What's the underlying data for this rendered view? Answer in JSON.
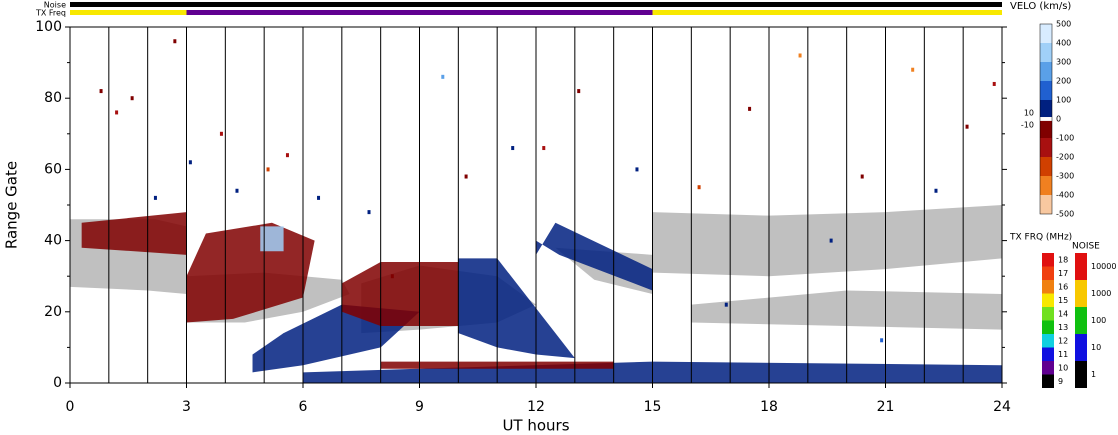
{
  "chart_data": {
    "type": "range-time",
    "xlabel": "UT hours",
    "ylabel": "Range Gate",
    "xlim": [
      0,
      24
    ],
    "xticks": [
      0,
      3,
      6,
      9,
      12,
      15,
      18,
      21,
      24
    ],
    "xgrid": [
      1,
      2,
      3,
      4,
      5,
      6,
      7,
      8,
      9,
      10,
      11,
      12,
      13,
      14,
      15,
      16,
      17,
      18,
      19,
      20,
      21,
      22,
      23
    ],
    "ylim": [
      0,
      100
    ],
    "yticks": [
      0,
      20,
      40,
      60,
      80,
      100
    ],
    "yminor": [
      10,
      30,
      50,
      70,
      90
    ],
    "ground_scatter_color": "#c0c0c0",
    "ground_scatter": [
      {
        "x": [
          0,
          2,
          3,
          3,
          2.2,
          0
        ],
        "y": [
          27,
          26,
          25,
          44,
          46,
          46
        ]
      },
      {
        "x": [
          3,
          4.5,
          6,
          7.2,
          7,
          5,
          3
        ],
        "y": [
          17,
          17,
          20,
          25,
          29,
          31,
          30
        ]
      },
      {
        "x": [
          7.5,
          9,
          11,
          12,
          11,
          9,
          7.5
        ],
        "y": [
          14,
          15,
          17,
          22,
          30,
          33,
          28
        ]
      },
      {
        "x": [
          12.5,
          15,
          15,
          13.5
        ],
        "y": [
          38,
          36,
          25,
          29
        ]
      },
      {
        "x": [
          15,
          18,
          21,
          24,
          24,
          21,
          18,
          15
        ],
        "y": [
          31,
          30,
          32,
          35,
          50,
          48,
          47,
          48
        ]
      },
      {
        "x": [
          16,
          20,
          24,
          24,
          20,
          16
        ],
        "y": [
          17,
          16,
          15,
          25,
          26,
          22
        ]
      }
    ],
    "regions": [
      {
        "velocity": -80,
        "x": [
          0.3,
          3,
          3,
          0.3
        ],
        "y": [
          38,
          36,
          48,
          45
        ]
      },
      {
        "velocity": -80,
        "x": [
          3,
          4.2,
          6,
          6.3,
          5.2,
          3.5,
          3
        ],
        "y": [
          17,
          18,
          24,
          40,
          45,
          42,
          30
        ]
      },
      {
        "velocity": 90,
        "x": [
          4.7,
          6,
          8,
          9,
          7,
          5.5,
          4.7
        ],
        "y": [
          3,
          5,
          10,
          20,
          22,
          14,
          8
        ]
      },
      {
        "velocity": -60,
        "x": [
          7,
          8,
          10,
          10,
          8,
          7
        ],
        "y": [
          20,
          16,
          16,
          34,
          34,
          28
        ]
      },
      {
        "velocity": 90,
        "x": [
          10,
          11,
          12,
          13,
          12.5,
          11,
          10
        ],
        "y": [
          14,
          10,
          8,
          7,
          14,
          35,
          35
        ]
      },
      {
        "velocity": 70,
        "x": [
          12,
          12.5,
          15,
          15,
          12.6,
          12
        ],
        "y": [
          36,
          45,
          32,
          26,
          36,
          40
        ]
      },
      {
        "velocity": 60,
        "x": [
          6,
          15,
          24,
          24,
          15,
          6
        ],
        "y": [
          0,
          0,
          0,
          5,
          6,
          3
        ]
      },
      {
        "velocity": -60,
        "x": [
          8,
          14,
          14,
          8
        ],
        "y": [
          4,
          4,
          6,
          6
        ]
      },
      {
        "velocity": 300,
        "x": [
          4.9,
          5.5,
          5.5,
          4.9
        ],
        "y": [
          37,
          37,
          44,
          44
        ]
      }
    ],
    "points": {
      "x": [
        0.8,
        1.2,
        1.6,
        2.7,
        3.1,
        3.9,
        4.3,
        5.1,
        5.6,
        6.4,
        7.7,
        8.3,
        9.6,
        10.2,
        11.4,
        13.1,
        14.6,
        16.2,
        17.5,
        18.8,
        19.6,
        20.4,
        21.7,
        22.3,
        23.1,
        23.8,
        2.2,
        20.9,
        16.9,
        12.2
      ],
      "y": [
        82,
        76,
        80,
        96,
        62,
        70,
        54,
        60,
        64,
        52,
        48,
        30,
        86,
        58,
        66,
        82,
        60,
        55,
        77,
        92,
        40,
        58,
        88,
        54,
        72,
        84,
        52,
        12,
        22,
        66
      ],
      "velocity": [
        -80,
        -150,
        -80,
        -50,
        80,
        -200,
        60,
        -300,
        -150,
        80,
        60,
        -100,
        200,
        -80,
        70,
        -100,
        60,
        -250,
        -80,
        -350,
        80,
        -100,
        -400,
        60,
        -80,
        -150,
        60,
        150,
        80,
        -200
      ]
    },
    "colorbars": {
      "velocity": {
        "title": "VELO (km/s)",
        "ticks": [
          500,
          400,
          300,
          200,
          100,
          0,
          -100,
          -200,
          -300,
          -400,
          -500
        ],
        "inner_ticks": [
          10,
          -10
        ],
        "colors": [
          "#d8ecff",
          "#a0d0f8",
          "#5aa0e8",
          "#2060d0",
          "#002080",
          "#ffffff",
          "#800000",
          "#a81010",
          "#d04000",
          "#f08020",
          "#f8c8a0"
        ]
      },
      "tx": {
        "title": "TX FRQ (MHz)",
        "ticks": [
          18,
          17,
          16,
          15,
          14,
          13,
          12,
          11,
          10,
          9
        ],
        "colors": [
          "#e01010",
          "#f04010",
          "#f08010",
          "#f8e800",
          "#70e020",
          "#10c010",
          "#10d0e0",
          "#1010e0",
          "#600090",
          "#000000"
        ],
        "status": {
          "label": "TX Freq",
          "segments": [
            {
              "x": [
                0,
                3
              ],
              "value": 15
            },
            {
              "x": [
                3,
                15
              ],
              "value": 10
            },
            {
              "x": [
                15,
                24
              ],
              "value": 15
            }
          ]
        }
      },
      "noise": {
        "title": "NOISE",
        "ticks": [
          10000,
          1000,
          100,
          10,
          1
        ],
        "colors": [
          "#e01010",
          "#f8c800",
          "#10c010",
          "#1010e0",
          "#000000"
        ],
        "status": {
          "label": "Noise",
          "segments": [
            {
              "x": [
                0,
                24
              ],
              "value": 1
            }
          ]
        }
      }
    }
  }
}
